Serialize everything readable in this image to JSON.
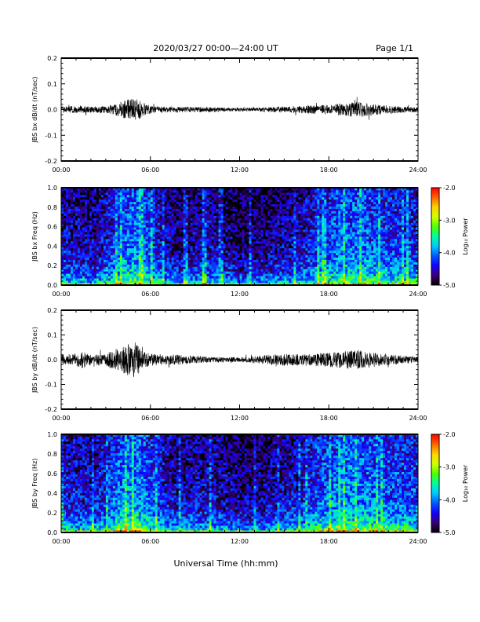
{
  "header": {
    "title": "2020/03/27  00:00—24:00 UT",
    "page": "Page 1/1"
  },
  "xlabel": "Universal Time (hh:mm)",
  "colorbar": {
    "label": "Log₁₀ Power",
    "range": [
      -5.0,
      -2.0
    ],
    "ticks": [
      "-2.0",
      "-3.0",
      "-4.0",
      "-5.0"
    ],
    "colors": [
      "#000000",
      "#3a0078",
      "#1400ff",
      "#005aff",
      "#00c8ff",
      "#00ffa0",
      "#50ff00",
      "#d2ff00",
      "#ffd200",
      "#ff6400",
      "#ff0000"
    ]
  },
  "chart_data": [
    {
      "type": "line",
      "ylabel": "JBS bx dB/dt (nT/sec)",
      "xlim": [
        0,
        24
      ],
      "ylim": [
        -0.2,
        0.2
      ],
      "x_ticks": [
        "00:00",
        "06:00",
        "12:00",
        "18:00",
        "24:00"
      ],
      "y_ticks": [
        "-0.2",
        "-0.1",
        "0.0",
        "0.1",
        "0.2"
      ],
      "series": [
        {
          "x": [
            0,
            1,
            2,
            3,
            3.5,
            4,
            4.5,
            5,
            5.5,
            6,
            7,
            8,
            9,
            10,
            11,
            12,
            13,
            14,
            15,
            16,
            17,
            18,
            19,
            20,
            21,
            22,
            23,
            24
          ],
          "amplitude": [
            0.012,
            0.014,
            0.012,
            0.014,
            0.02,
            0.03,
            0.04,
            0.045,
            0.03,
            0.015,
            0.012,
            0.011,
            0.01,
            0.01,
            0.008,
            0.007,
            0.008,
            0.01,
            0.012,
            0.014,
            0.016,
            0.02,
            0.025,
            0.03,
            0.022,
            0.016,
            0.012,
            0.01
          ]
        }
      ]
    },
    {
      "type": "heatmap",
      "ylabel": "JBS bx Freq (Hz)",
      "xlim": [
        0,
        24
      ],
      "ylim": [
        0.0,
        1.0
      ],
      "x_ticks": [
        "00:00",
        "06:00",
        "12:00",
        "18:00",
        "24:00"
      ],
      "y_ticks": [
        "0.0",
        "0.2",
        "0.4",
        "0.6",
        "0.8",
        "1.0"
      ],
      "value_range": [
        -5.0,
        -2.0
      ],
      "activity": [
        0.35,
        0.32,
        0.28,
        0.4,
        0.6,
        0.65,
        0.5,
        0.3,
        0.25,
        0.3,
        0.35,
        0.25,
        0.2,
        0.22,
        0.25,
        0.3,
        0.35,
        0.45,
        0.55,
        0.62,
        0.6,
        0.55,
        0.5,
        0.48,
        0.45
      ]
    },
    {
      "type": "line",
      "ylabel": "JBS by dB/dt (nT/sec)",
      "xlim": [
        0,
        24
      ],
      "ylim": [
        -0.2,
        0.2
      ],
      "x_ticks": [
        "00:00",
        "06:00",
        "12:00",
        "18:00",
        "24:00"
      ],
      "y_ticks": [
        "-0.2",
        "-0.1",
        "0.0",
        "0.1",
        "0.2"
      ],
      "series": [
        {
          "x": [
            0,
            1,
            1.5,
            2,
            3,
            3.5,
            4,
            4.5,
            5,
            5.5,
            6,
            7,
            8,
            9,
            10,
            11,
            12,
            13,
            14,
            15,
            16,
            17,
            18,
            19,
            20,
            21,
            22,
            23,
            24
          ],
          "amplitude": [
            0.02,
            0.025,
            0.04,
            0.022,
            0.025,
            0.04,
            0.05,
            0.065,
            0.07,
            0.04,
            0.025,
            0.022,
            0.02,
            0.015,
            0.012,
            0.01,
            0.01,
            0.014,
            0.02,
            0.024,
            0.024,
            0.026,
            0.03,
            0.035,
            0.04,
            0.03,
            0.022,
            0.016,
            0.012
          ]
        }
      ]
    },
    {
      "type": "heatmap",
      "ylabel": "JBS by Freq (Hz)",
      "xlim": [
        0,
        24
      ],
      "ylim": [
        0.0,
        1.0
      ],
      "x_ticks": [
        "00:00",
        "06:00",
        "12:00",
        "18:00",
        "24:00"
      ],
      "y_ticks": [
        "0.0",
        "0.2",
        "0.4",
        "0.6",
        "0.8",
        "1.0"
      ],
      "value_range": [
        -5.0,
        -2.0
      ],
      "activity": [
        0.4,
        0.38,
        0.35,
        0.45,
        0.65,
        0.7,
        0.55,
        0.35,
        0.3,
        0.32,
        0.35,
        0.28,
        0.22,
        0.24,
        0.28,
        0.32,
        0.38,
        0.5,
        0.6,
        0.66,
        0.64,
        0.6,
        0.55,
        0.52,
        0.5
      ]
    }
  ]
}
